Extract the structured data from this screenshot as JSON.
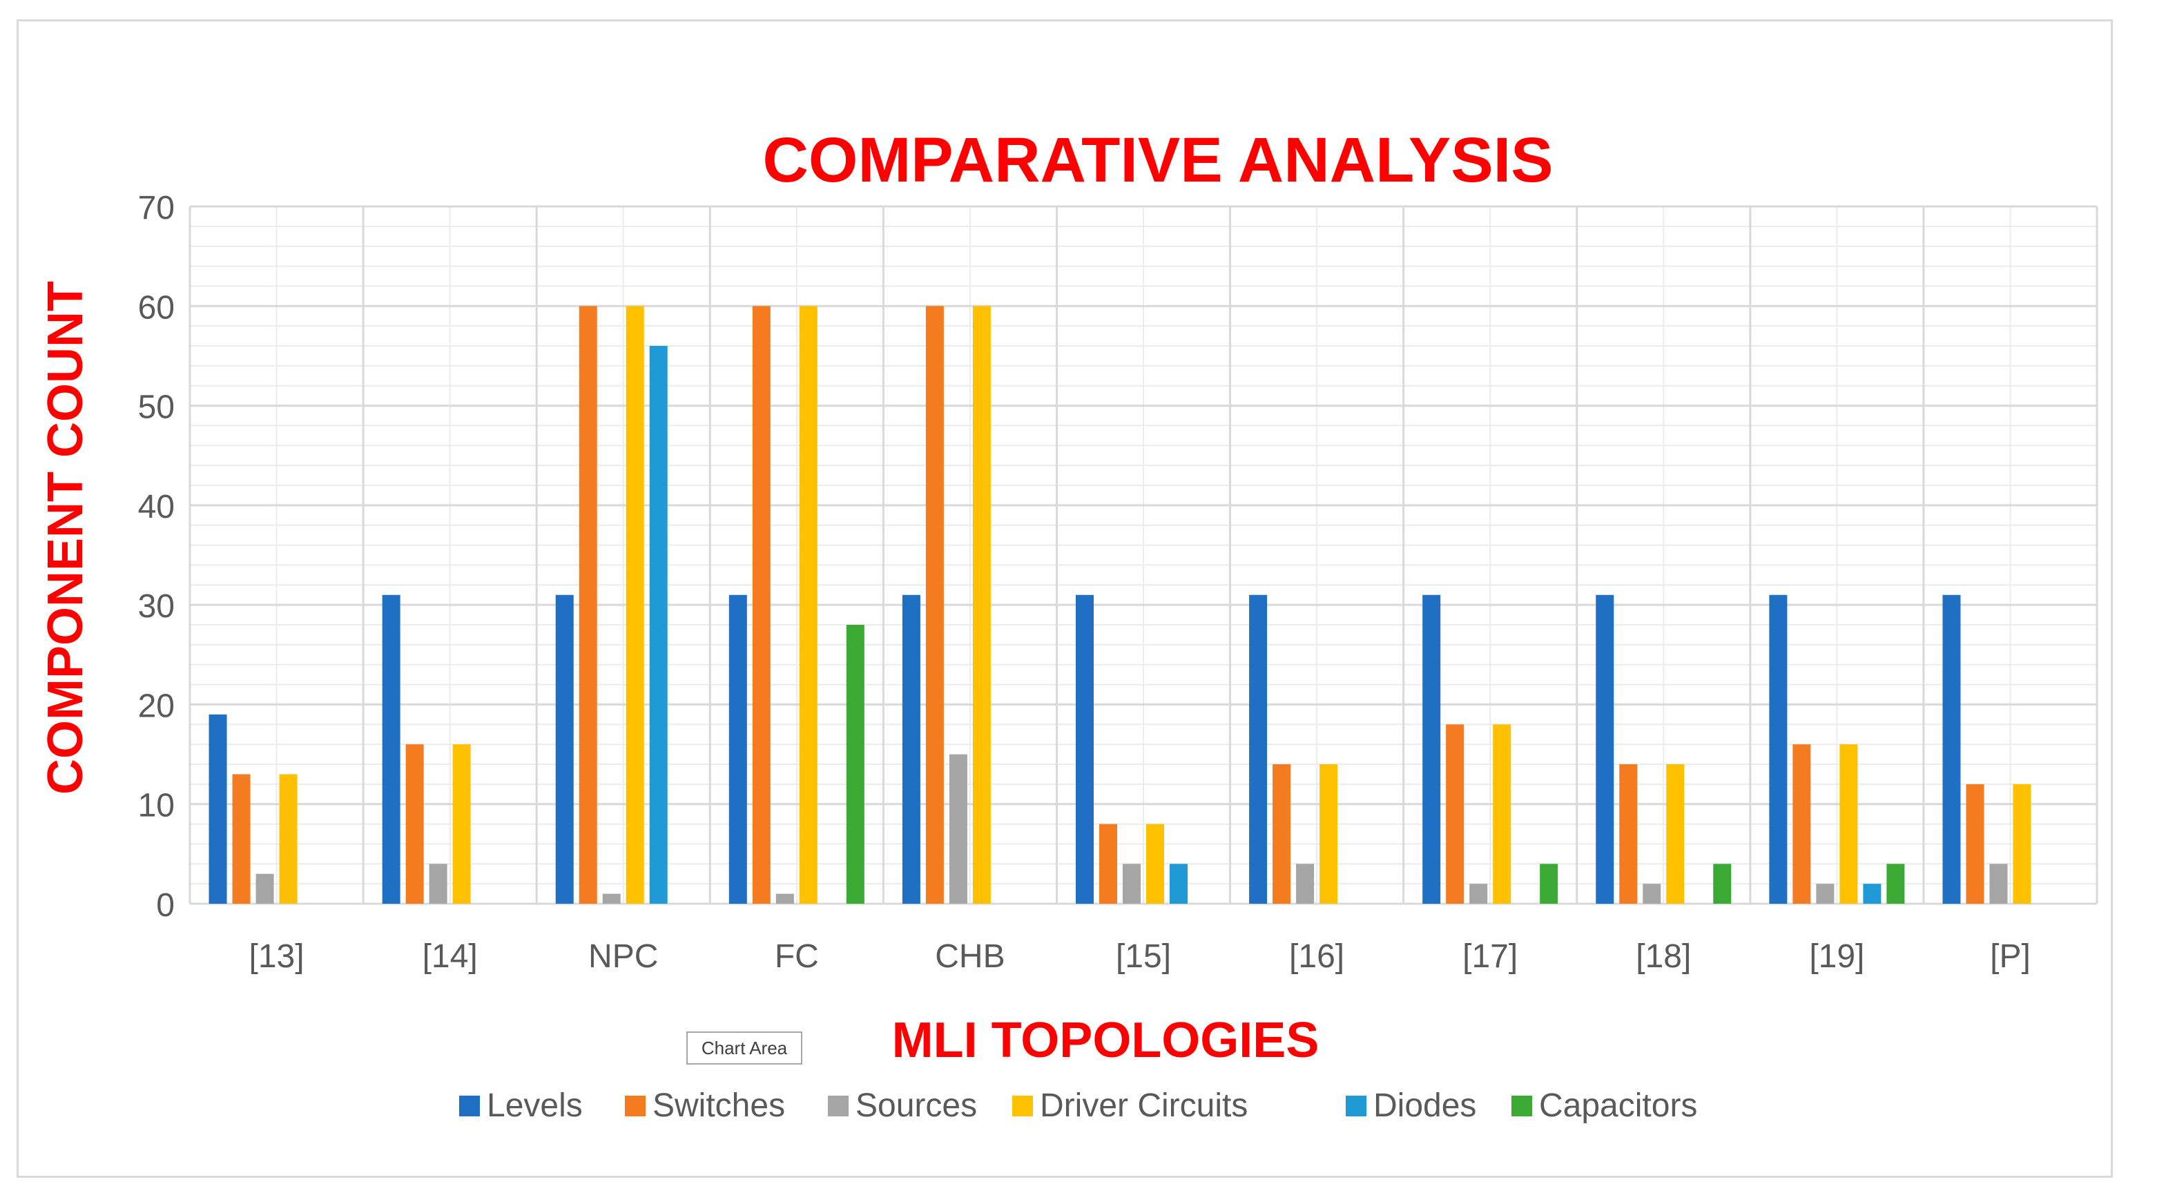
{
  "chart_data": {
    "type": "bar",
    "title": "COMPARATIVE ANALYSIS",
    "xlabel": "MLI TOPOLOGIES",
    "ylabel": "COMPONENT COUNT",
    "ylim": [
      0,
      70
    ],
    "yticks": [
      "0",
      "10",
      "20",
      "30",
      "40",
      "50",
      "60",
      "70"
    ],
    "grid": true,
    "legend_position": "bottom",
    "categories": [
      "[13]",
      "[14]",
      "NPC",
      "FC",
      "CHB",
      "[15]",
      "[16]",
      "[17]",
      "[18]",
      "[19]",
      "[P]"
    ],
    "series": [
      {
        "name": "Levels",
        "color": "#1f6fc5",
        "values": [
          19,
          31,
          31,
          31,
          31,
          31,
          31,
          31,
          31,
          31,
          31
        ]
      },
      {
        "name": "Switches",
        "color": "#f47b20",
        "values": [
          13,
          16,
          60,
          60,
          60,
          8,
          14,
          18,
          14,
          16,
          12
        ]
      },
      {
        "name": "Sources",
        "color": "#a5a5a5",
        "values": [
          3,
          4,
          1,
          1,
          15,
          4,
          4,
          2,
          2,
          2,
          4
        ]
      },
      {
        "name": "Driver Circuits",
        "color": "#ffc000",
        "values": [
          13,
          16,
          60,
          60,
          60,
          8,
          14,
          18,
          14,
          16,
          12
        ]
      },
      {
        "name": "Diodes",
        "color": "#1f9ad6",
        "values": [
          0,
          0,
          56,
          0,
          0,
          4,
          0,
          0,
          0,
          2,
          0
        ]
      },
      {
        "name": "Capacitors",
        "color": "#3aaa35",
        "values": [
          0,
          0,
          0,
          28,
          0,
          0,
          0,
          4,
          4,
          4,
          0
        ]
      }
    ]
  },
  "tooltip": {
    "label": "Chart Area"
  }
}
